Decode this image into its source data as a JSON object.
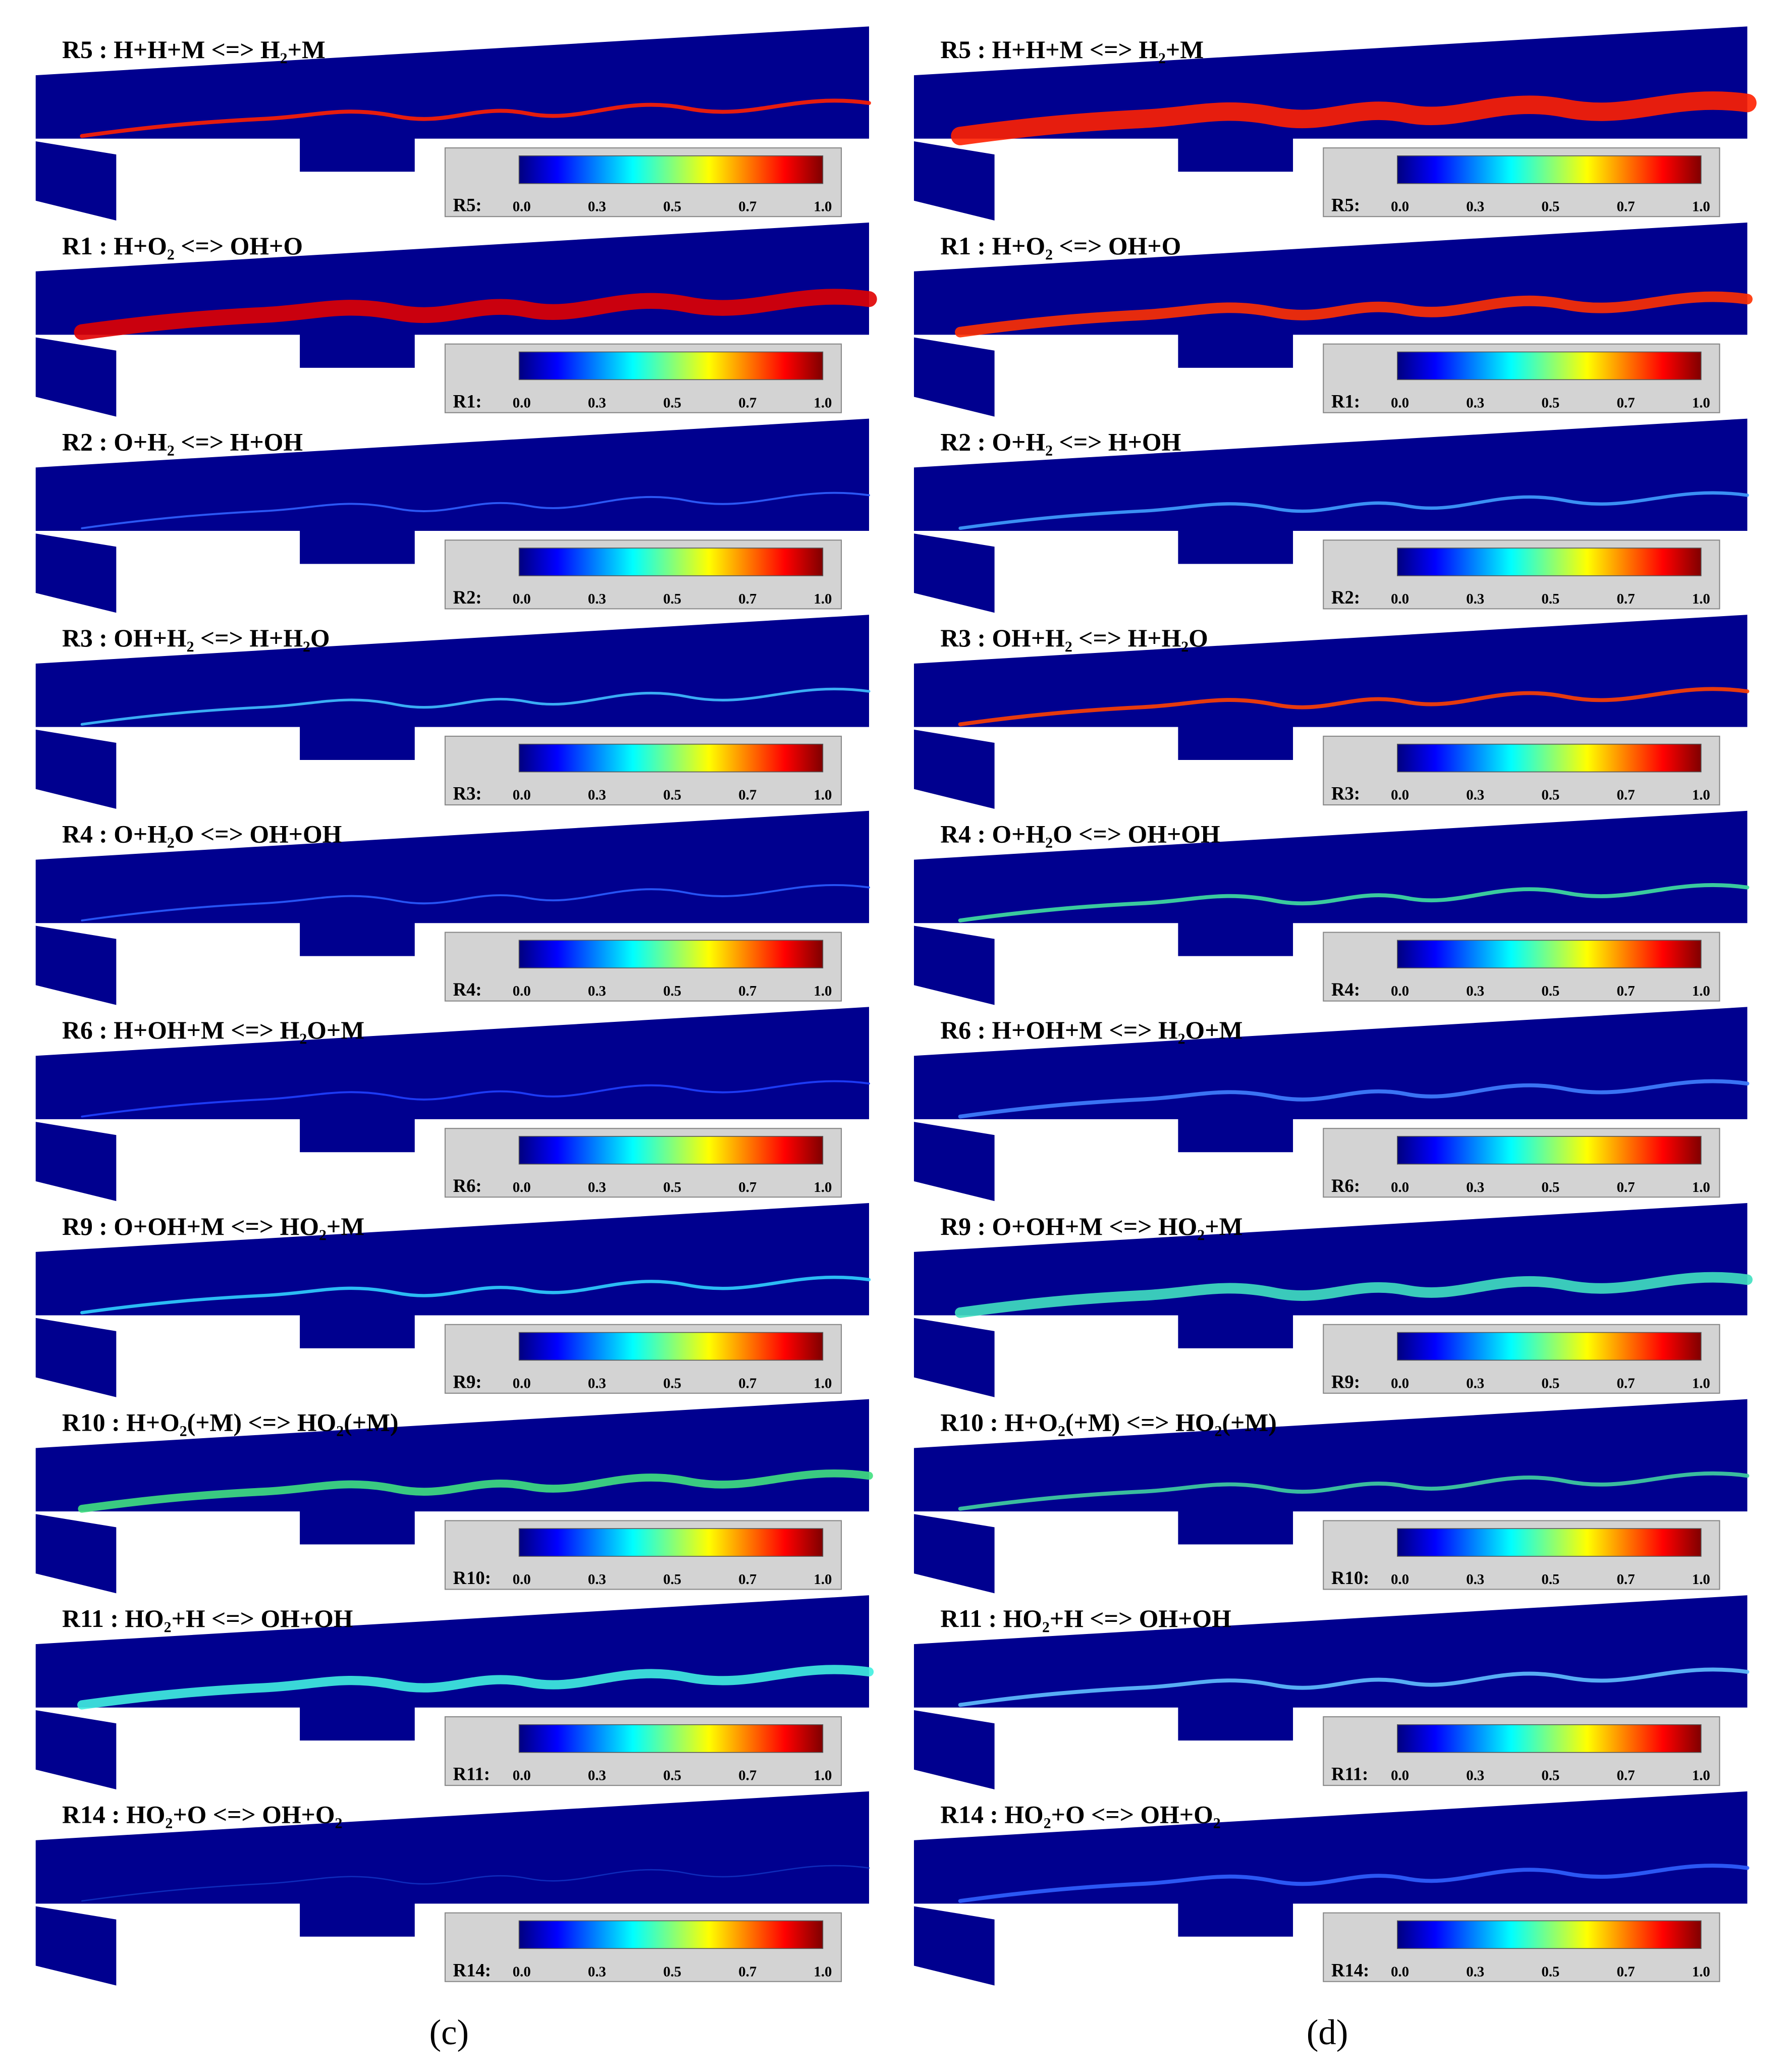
{
  "colorbar_ticks": [
    "0.0",
    "0.3",
    "0.5",
    "0.7",
    "1.0"
  ],
  "columns": [
    {
      "caption": "(c)",
      "panels": [
        {
          "title": "R5 : H+H+M <=> H₂+M",
          "colorbar_label": "R5:"
        },
        {
          "title": "R1 : H+O₂ <=> OH+O",
          "colorbar_label": "R1:"
        },
        {
          "title": "R2 : O+H₂ <=> H+OH",
          "colorbar_label": "R2:"
        },
        {
          "title": "R3 : OH+H₂ <=> H+H₂O",
          "colorbar_label": "R3:"
        },
        {
          "title": "R4 : O+H₂O <=> OH+OH",
          "colorbar_label": "R4:"
        },
        {
          "title": "R6 : H+OH+M <=> H₂O+M",
          "colorbar_label": "R6:"
        },
        {
          "title": "R9 : O+OH+M <=> HO₂+M",
          "colorbar_label": "R9:"
        },
        {
          "title": "R10 : H+O₂(+M) <=> HO₂(+M)",
          "colorbar_label": "R10:"
        },
        {
          "title": "R11 : HO₂+H <=> OH+OH",
          "colorbar_label": "R11:"
        },
        {
          "title": "R14 : HO₂+O <=> OH+O₂",
          "colorbar_label": "R14:"
        }
      ]
    },
    {
      "caption": "(d)",
      "panels": [
        {
          "title": "R5 : H+H+M <=> H₂+M",
          "colorbar_label": "R5:"
        },
        {
          "title": "R1 : H+O₂ <=> OH+O",
          "colorbar_label": "R1:"
        },
        {
          "title": "R2 : O+H₂ <=> H+OH",
          "colorbar_label": "R2:"
        },
        {
          "title": "R3 : OH+H₂ <=> H+H₂O",
          "colorbar_label": "R3:"
        },
        {
          "title": "R4 : O+H₂O <=> OH+OH",
          "colorbar_label": "R4:"
        },
        {
          "title": "R6 : H+OH+M <=> H₂O+M",
          "colorbar_label": "R6:"
        },
        {
          "title": "R9 : O+OH+M <=> HO₂+M",
          "colorbar_label": "R9:"
        },
        {
          "title": "R10 : H+O₂(+M) <=> HO₂(+M)",
          "colorbar_label": "R10:"
        },
        {
          "title": "R11 : HO₂+H <=> OH+OH",
          "colorbar_label": "R11:"
        },
        {
          "title": "R14 : HO₂+O <=> OH+O₂",
          "colorbar_label": "R14:"
        }
      ]
    }
  ]
}
